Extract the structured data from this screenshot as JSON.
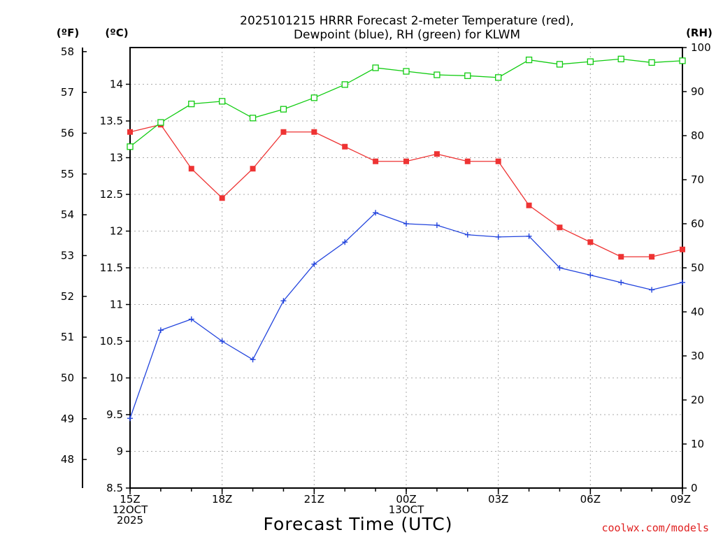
{
  "title_line1": "2025101215 HRRR Forecast 2-meter Temperature (red),",
  "title_line2": "Dewpoint (blue), RH (green) for KLWM",
  "unit_f": "(ºF)",
  "unit_c": "(ºC)",
  "unit_rh": "(RH)",
  "credit": "coolwx.com/models",
  "colors": {
    "temperature": "#ee3333",
    "dewpoint": "#2244dd",
    "rh": "#11cc11",
    "grid": "#aaaaaa"
  },
  "chart_data": {
    "type": "line",
    "title": "2025101215 HRRR Forecast 2-meter Temperature (red), Dewpoint (blue), RH (green) for KLWM",
    "xlabel": "Forecast Time (UTC)",
    "x_hours": [
      0,
      1,
      2,
      3,
      4,
      5,
      6,
      7,
      8,
      9,
      10,
      11,
      12,
      13,
      14,
      15,
      16,
      17,
      18
    ],
    "x_ticks": [
      {
        "hour": 0,
        "lines": [
          "15Z",
          "12OCT",
          "2025"
        ]
      },
      {
        "hour": 3,
        "lines": [
          "18Z"
        ]
      },
      {
        "hour": 6,
        "lines": [
          "21Z"
        ]
      },
      {
        "hour": 9,
        "lines": [
          "00Z",
          "13OCT"
        ]
      },
      {
        "hour": 12,
        "lines": [
          "03Z"
        ]
      },
      {
        "hour": 15,
        "lines": [
          "06Z"
        ]
      },
      {
        "hour": 18,
        "lines": [
          "09Z"
        ]
      }
    ],
    "x_range": [
      0,
      18
    ],
    "left_axis_c": {
      "label": "(ºC)",
      "range": [
        8.5,
        14.5
      ],
      "ticks": [
        "8.5",
        "9",
        "9.5",
        "10",
        "10.5",
        "11",
        "11.5",
        "12",
        "12.5",
        "13",
        "13.5",
        "14"
      ]
    },
    "left_axis_f": {
      "label": "(ºF)",
      "range": [
        47.3,
        58.1
      ],
      "ticks": [
        "48",
        "49",
        "50",
        "51",
        "52",
        "53",
        "54",
        "55",
        "56",
        "57",
        "58"
      ]
    },
    "right_axis_rh": {
      "label": "(RH)",
      "range": [
        0,
        100
      ],
      "ticks": [
        "0",
        "10",
        "20",
        "30",
        "40",
        "50",
        "60",
        "70",
        "80",
        "90",
        "100"
      ]
    },
    "grid": true,
    "series": [
      {
        "name": "Temperature",
        "axis": "C",
        "marker": "filled-square",
        "values": [
          13.35,
          13.45,
          12.85,
          12.45,
          12.85,
          13.35,
          13.35,
          13.15,
          12.95,
          12.95,
          13.05,
          12.95,
          12.95,
          12.35,
          12.05,
          11.85,
          11.65,
          11.65,
          11.75
        ]
      },
      {
        "name": "Dewpoint",
        "axis": "C",
        "marker": "plus",
        "values": [
          9.45,
          10.65,
          10.8,
          10.5,
          10.25,
          11.05,
          11.55,
          11.85,
          12.25,
          12.1,
          12.08,
          11.95,
          11.92,
          11.93,
          11.5,
          11.4,
          11.3,
          11.2,
          11.3
        ]
      },
      {
        "name": "RH",
        "axis": "RH",
        "marker": "open-square",
        "values": [
          77.5,
          83,
          87.2,
          87.8,
          84,
          86,
          88.6,
          91.6,
          95.4,
          94.6,
          93.8,
          93.6,
          93.2,
          97.2,
          96.2,
          96.8,
          97.4,
          96.6,
          97
        ]
      }
    ]
  }
}
